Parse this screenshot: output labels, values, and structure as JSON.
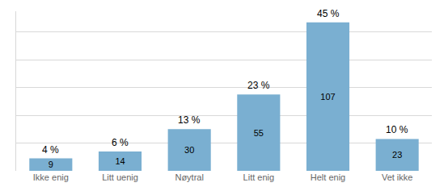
{
  "chart_data": {
    "type": "bar",
    "categories": [
      "Ikke enig",
      "Litt uenig",
      "Nøytral",
      "Litt enig",
      "Helt enig",
      "Vet ikke"
    ],
    "values": [
      9,
      14,
      30,
      55,
      107,
      23
    ],
    "percentages": [
      "4 %",
      "6 %",
      "13 %",
      "23 %",
      "45 %",
      "10 %"
    ],
    "color": "#7aafd1",
    "ylim": [
      0,
      115
    ],
    "yticks": [
      0,
      20,
      40,
      60,
      80,
      100
    ],
    "grid": true,
    "data_labels": true,
    "tick_labels": "x"
  }
}
